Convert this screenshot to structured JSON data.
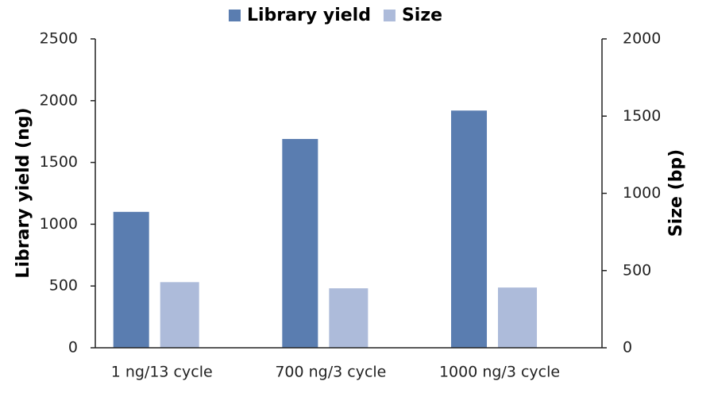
{
  "chart_data": {
    "type": "bar",
    "categories": [
      "1 ng/13 cycle",
      "700 ng/3 cycle",
      "1000 ng/3 cycle"
    ],
    "series": [
      {
        "name": "Library yield",
        "color": "#5a7db0",
        "values": [
          1100,
          1690,
          1920
        ]
      },
      {
        "name": "Size",
        "color": "#adbbda",
        "values": [
          425,
          385,
          390
        ],
        "axis": "y2"
      }
    ],
    "ylabel": "Library yield (ng)",
    "y2label": "Size (bp)",
    "ylim": [
      0,
      2500
    ],
    "yticks": [
      0,
      500,
      1000,
      1500,
      2000,
      2500
    ],
    "y2lim": [
      0,
      2000
    ],
    "y2ticks": [
      0,
      500,
      1000,
      1500,
      2000
    ],
    "legend": "top"
  }
}
